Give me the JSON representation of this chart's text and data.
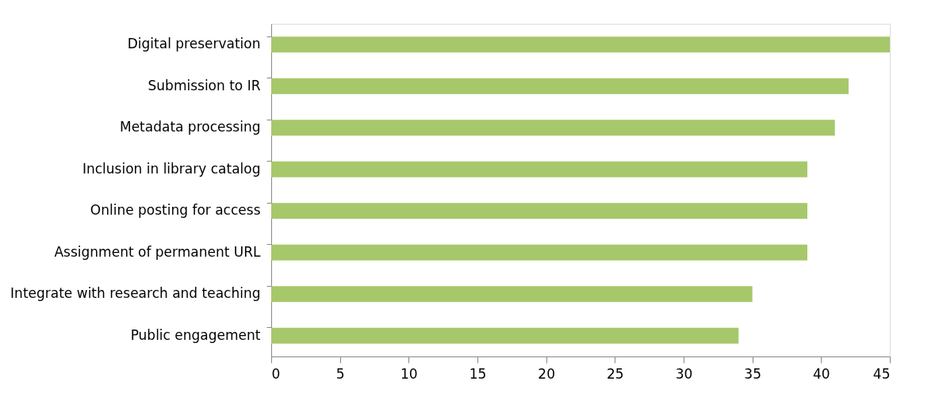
{
  "chart_data": {
    "type": "bar",
    "orientation": "horizontal",
    "categories": [
      "Digital preservation",
      "Submission to IR",
      "Metadata processing",
      "Inclusion in library catalog",
      "Online posting for access",
      "Assignment of permanent URL",
      "Integrate with research and teaching",
      "Public engagement"
    ],
    "values": [
      45,
      42,
      41,
      39,
      39,
      39,
      35,
      34
    ],
    "color": "#a6c86a",
    "xlim": [
      0,
      45
    ],
    "xticks": [
      0,
      5,
      10,
      15,
      20,
      25,
      30,
      35,
      40,
      45
    ],
    "grid": false
  }
}
